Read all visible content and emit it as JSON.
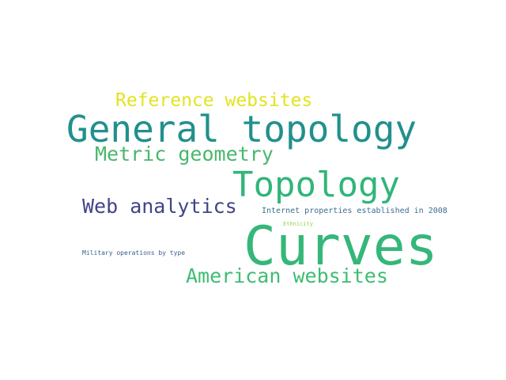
{
  "word_cloud": {
    "words": [
      {
        "text": "Reference websites",
        "color": "#e3e31f"
      },
      {
        "text": "General topology",
        "color": "#21908d"
      },
      {
        "text": "Metric geometry",
        "color": "#48b86a"
      },
      {
        "text": "Topology",
        "color": "#31b57b"
      },
      {
        "text": "Web analytics",
        "color": "#414487"
      },
      {
        "text": "Internet properties established in 2008",
        "color": "#3b6f8e"
      },
      {
        "text": "Ethnicity",
        "color": "#8ed645"
      },
      {
        "text": "Curves",
        "color": "#35b779"
      },
      {
        "text": "Military operations by type",
        "color": "#3a5e8c"
      },
      {
        "text": "American websites",
        "color": "#3fbc73"
      }
    ]
  }
}
